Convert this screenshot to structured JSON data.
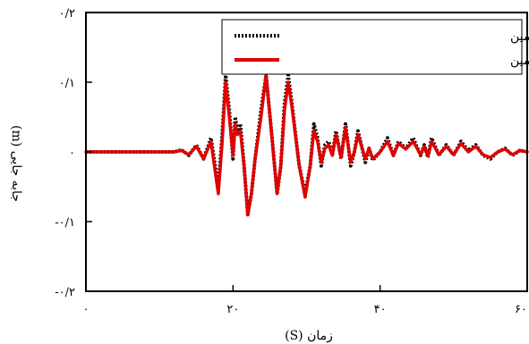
{
  "chart_data": {
    "type": "line",
    "xlabel": "زمان (S)",
    "ylabel": "جابه جایی (m)",
    "xlim": [
      0,
      60
    ],
    "ylim": [
      -0.2,
      0.2
    ],
    "x_ticks": [
      0,
      20,
      40,
      60
    ],
    "x_tick_labels": [
      "۰",
      "۲۰",
      "۴۰",
      "۶۰"
    ],
    "y_ticks": [
      0.2,
      0.1,
      0,
      -0.1,
      -0.2
    ],
    "y_tick_labels": [
      "۰/۲",
      "۰/۱",
      "۰",
      "-۰/۱",
      "-۰/۲"
    ],
    "grid": false,
    "legend_position": "top-right",
    "series": [
      {
        "name": "جابه جایی خاک روی سطح زمین",
        "color": "#000000",
        "style": "dotted",
        "points": [
          [
            0,
            0
          ],
          [
            12,
            0
          ],
          [
            13,
            0.003
          ],
          [
            14,
            -0.005
          ],
          [
            15,
            0.01
          ],
          [
            16,
            -0.01
          ],
          [
            17,
            0.02
          ],
          [
            18,
            -0.05
          ],
          [
            18.5,
            0.02
          ],
          [
            19,
            0.11
          ],
          [
            19.5,
            0.06
          ],
          [
            20,
            -0.01
          ],
          [
            20.3,
            0.05
          ],
          [
            20.6,
            0.03
          ],
          [
            21,
            0.04
          ],
          [
            21.5,
            -0.02
          ],
          [
            22,
            -0.09
          ],
          [
            22.5,
            -0.06
          ],
          [
            23,
            -0.01
          ],
          [
            23.8,
            0.06
          ],
          [
            24.5,
            0.11
          ],
          [
            25.3,
            0.02
          ],
          [
            26,
            -0.06
          ],
          [
            26.5,
            -0.02
          ],
          [
            27,
            0.07
          ],
          [
            27.5,
            0.11
          ],
          [
            28,
            0.07
          ],
          [
            29,
            -0.02
          ],
          [
            29.8,
            -0.06
          ],
          [
            30.5,
            -0.02
          ],
          [
            31,
            0.04
          ],
          [
            31.5,
            0.02
          ],
          [
            32,
            -0.02
          ],
          [
            32.5,
            0.01
          ],
          [
            33,
            0.015
          ],
          [
            33.5,
            -0.005
          ],
          [
            34,
            0.03
          ],
          [
            34.7,
            -0.01
          ],
          [
            35.3,
            0.04
          ],
          [
            36,
            -0.02
          ],
          [
            36.5,
            0.0
          ],
          [
            37,
            0.03
          ],
          [
            38,
            -0.015
          ],
          [
            38.5,
            0.005
          ],
          [
            39,
            -0.012
          ],
          [
            40,
            0.0
          ],
          [
            41,
            0.02
          ],
          [
            41.8,
            -0.005
          ],
          [
            42.5,
            0.015
          ],
          [
            43.5,
            0.005
          ],
          [
            44.5,
            0.02
          ],
          [
            45.5,
            -0.005
          ],
          [
            46,
            0.01
          ],
          [
            46.5,
            -0.008
          ],
          [
            47,
            0.02
          ],
          [
            48,
            -0.005
          ],
          [
            49,
            0.01
          ],
          [
            50,
            -0.005
          ],
          [
            51,
            0.015
          ],
          [
            52,
            0.002
          ],
          [
            53,
            0.01
          ],
          [
            54,
            -0.005
          ],
          [
            55,
            -0.01
          ],
          [
            56,
            0.0
          ],
          [
            57,
            0.005
          ],
          [
            58,
            -0.005
          ],
          [
            59,
            0.002
          ],
          [
            60,
            0.0
          ]
        ]
      },
      {
        "name": "جابه جایی شمع - خاک روی سطح زمین",
        "color": "#e00000",
        "style": "solid",
        "points": [
          [
            0,
            0
          ],
          [
            12,
            0
          ],
          [
            13,
            0.002
          ],
          [
            14,
            -0.004
          ],
          [
            15,
            0.008
          ],
          [
            16,
            -0.01
          ],
          [
            17,
            0.015
          ],
          [
            18,
            -0.06
          ],
          [
            18.5,
            0.01
          ],
          [
            19,
            0.1
          ],
          [
            19.5,
            0.05
          ],
          [
            20,
            -0.005
          ],
          [
            20.3,
            0.04
          ],
          [
            20.6,
            0.025
          ],
          [
            21,
            0.03
          ],
          [
            21.5,
            -0.02
          ],
          [
            22,
            -0.09
          ],
          [
            22.5,
            -0.06
          ],
          [
            23,
            -0.01
          ],
          [
            23.8,
            0.05
          ],
          [
            24.5,
            0.11
          ],
          [
            25.3,
            0.02
          ],
          [
            26,
            -0.06
          ],
          [
            26.5,
            -0.02
          ],
          [
            27,
            0.06
          ],
          [
            27.5,
            0.1
          ],
          [
            28,
            0.065
          ],
          [
            29,
            -0.02
          ],
          [
            29.8,
            -0.065
          ],
          [
            30.5,
            -0.02
          ],
          [
            31,
            0.03
          ],
          [
            31.5,
            0.015
          ],
          [
            32,
            -0.015
          ],
          [
            32.5,
            0.005
          ],
          [
            33,
            0.01
          ],
          [
            33.5,
            -0.005
          ],
          [
            34,
            0.025
          ],
          [
            34.7,
            -0.008
          ],
          [
            35.3,
            0.035
          ],
          [
            36,
            -0.015
          ],
          [
            36.5,
            0.0
          ],
          [
            37,
            0.025
          ],
          [
            38,
            -0.01
          ],
          [
            38.5,
            0.005
          ],
          [
            39,
            -0.01
          ],
          [
            40,
            0.0
          ],
          [
            41,
            0.015
          ],
          [
            41.8,
            -0.005
          ],
          [
            42.5,
            0.012
          ],
          [
            43.5,
            0.004
          ],
          [
            44.5,
            0.015
          ],
          [
            45.5,
            -0.004
          ],
          [
            46,
            0.008
          ],
          [
            46.5,
            -0.006
          ],
          [
            47,
            0.015
          ],
          [
            48,
            -0.004
          ],
          [
            49,
            0.008
          ],
          [
            50,
            -0.004
          ],
          [
            51,
            0.012
          ],
          [
            52,
            0.0
          ],
          [
            53,
            0.008
          ],
          [
            54,
            -0.004
          ],
          [
            55,
            -0.008
          ],
          [
            56,
            0.0
          ],
          [
            57,
            0.004
          ],
          [
            58,
            -0.004
          ],
          [
            59,
            0.002
          ],
          [
            60,
            0.0
          ]
        ]
      }
    ]
  }
}
